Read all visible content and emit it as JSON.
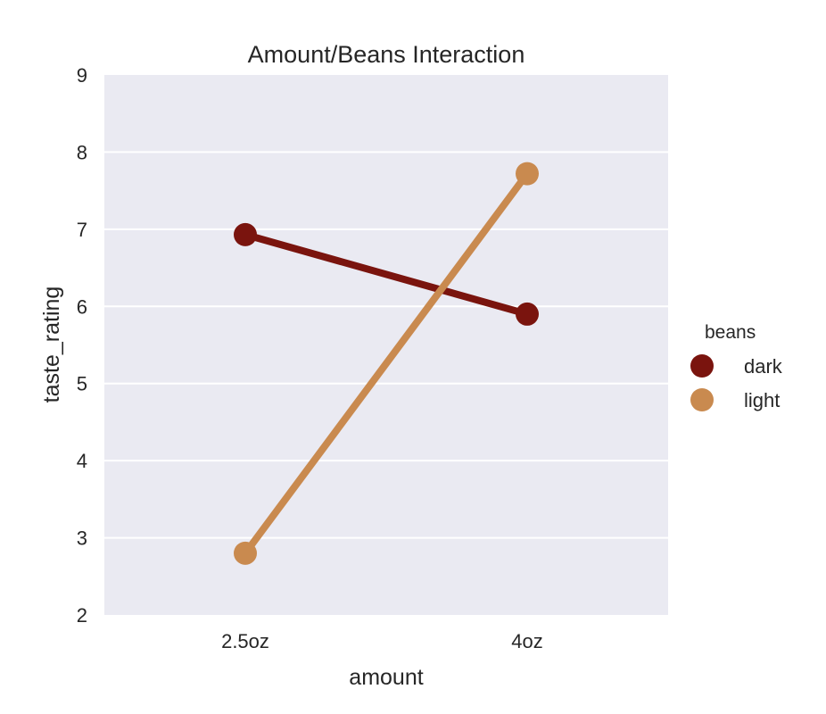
{
  "chart_data": {
    "type": "line",
    "title": "Amount/Beans Interaction",
    "xlabel": "amount",
    "ylabel": "taste_rating",
    "categories": [
      "2.5oz",
      "4oz"
    ],
    "ylim": [
      2,
      9
    ],
    "yticks": [
      "2",
      "3",
      "4",
      "5",
      "6",
      "7",
      "8",
      "9"
    ],
    "grid": true,
    "legend": {
      "title": "beans",
      "placement": "right"
    },
    "series": [
      {
        "name": "dark",
        "color": "#7a140e",
        "values": [
          6.93,
          5.9
        ]
      },
      {
        "name": "light",
        "color": "#c98a4f",
        "values": [
          2.8,
          7.72
        ]
      }
    ]
  }
}
